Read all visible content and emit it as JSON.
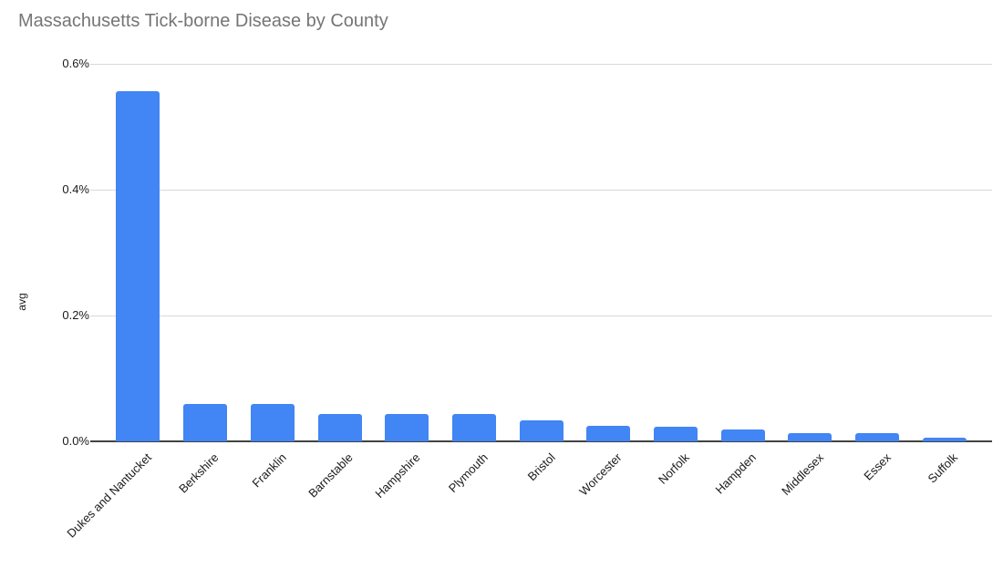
{
  "chart_data": {
    "type": "bar",
    "title": "Massachusetts Tick-borne Disease by County",
    "xlabel": "",
    "ylabel": "avg",
    "unit": "%",
    "categories": [
      "Dukes and Nantucket",
      "Berkshire",
      "Franklin",
      "Barnstable",
      "Hampshire",
      "Plymouth",
      "Bristol",
      "Worcester",
      "Norfolk",
      "Hampden",
      "Middlesex",
      "Essex",
      "Suffolk"
    ],
    "values": [
      0.556,
      0.06,
      0.06,
      0.044,
      0.044,
      0.044,
      0.034,
      0.025,
      0.023,
      0.019,
      0.013,
      0.013,
      0.006
    ],
    "ylim": [
      0,
      0.6
    ],
    "y_ticks": [
      "0.0%",
      "0.2%",
      "0.4%",
      "0.6%"
    ],
    "y_tick_values": [
      0,
      0.2,
      0.4,
      0.6
    ],
    "grid": true,
    "legend_position": "none",
    "x_label_rotation_deg": 45,
    "colors": {
      "bar": "#4285f4",
      "title": "#757575",
      "axis_text": "#1a1a1a",
      "gridline": "#d9d9d9",
      "baseline": "#424242"
    }
  }
}
